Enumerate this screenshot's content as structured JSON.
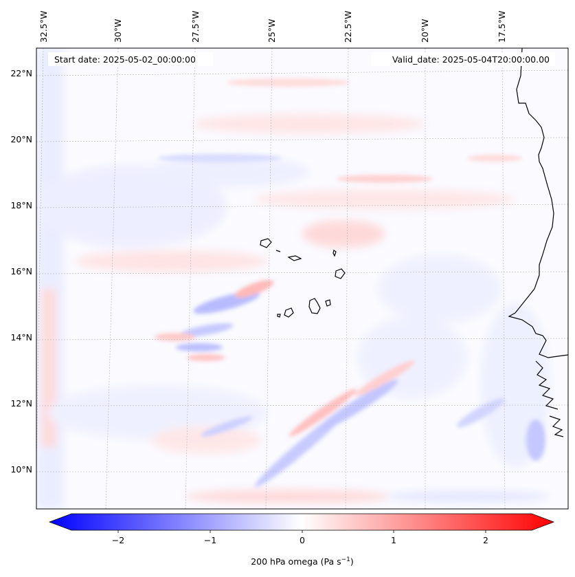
{
  "map": {
    "start_date_text": "Start date: 2025-05-02_00:00:00",
    "valid_date_text": "Valid_date: 2025-05-04T20:00:00.00",
    "lon_labels": [
      "32.5°W",
      "30°W",
      "27.5°W",
      "25°W",
      "22.5°W",
      "20°W",
      "17.5°W"
    ],
    "lat_labels": [
      "22°N",
      "20°N",
      "18°N",
      "16°N",
      "14°N",
      "12°N",
      "10°N"
    ],
    "colors": {
      "negative": "#0000ff",
      "neutral": "#ffffff",
      "positive": "#ff0000",
      "coastline": "#000000",
      "gridline": "#b4b4b4"
    }
  },
  "colorbar": {
    "label": "200 hPa omega (Pa s",
    "label_exponent": "−1",
    "label_close": ")",
    "tick_labels": [
      "−2",
      "−1",
      "0",
      "1",
      "2"
    ],
    "range": [
      -2.75,
      2.75
    ],
    "colormap": "bwr"
  }
}
